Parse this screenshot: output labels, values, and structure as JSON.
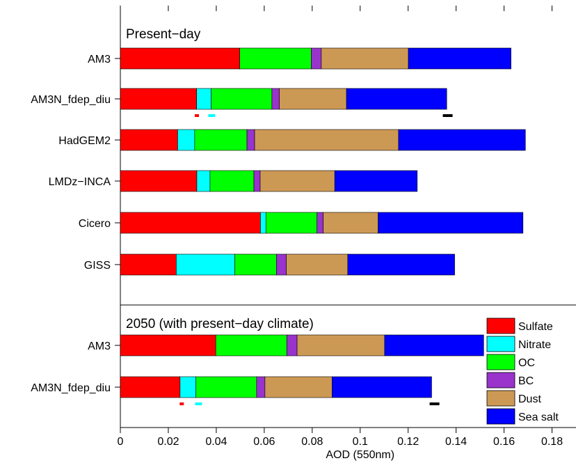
{
  "chart_data": {
    "type": "bar",
    "orientation": "horizontal",
    "stacked": true,
    "xlabel": "AOD (550nm)",
    "xlim": [
      0,
      0.19
    ],
    "xticks": [
      0,
      0.02,
      0.04,
      0.06,
      0.08,
      0.1,
      0.12,
      0.14,
      0.16,
      0.18
    ],
    "xtick_labels": [
      "0",
      "0.02",
      "0.04",
      "0.06",
      "0.08",
      "0.1",
      "0.12",
      "0.14",
      "0.16",
      "0.18"
    ],
    "grid": false,
    "legend_position": "bottom-right",
    "series": [
      {
        "name": "Sulfate",
        "color": "#ff0000"
      },
      {
        "name": "Nitrate",
        "color": "#00ffff"
      },
      {
        "name": "OC",
        "color": "#00ff00"
      },
      {
        "name": "BC",
        "color": "#9933cc"
      },
      {
        "name": "Dust",
        "color": "#cc9955"
      },
      {
        "name": "Sea salt",
        "color": "#0000ff"
      }
    ],
    "panels": [
      {
        "title": "Present−day",
        "rows": [
          {
            "label": "AM3",
            "values": [
              0.0498,
              0,
              0.0298,
              0.0042,
              0.0363,
              0.0428
            ]
          },
          {
            "label": "AM3N_fdep_diu",
            "values": [
              0.0318,
              0.0061,
              0.0253,
              0.0031,
              0.028,
              0.0418
            ],
            "markers": [
              {
                "x": 0.0319,
                "color": "#ff0000"
              },
              {
                "x": 0.0381,
                "color": "#00ffff"
              },
              {
                "x": 0.1365,
                "color": "#000000"
              }
            ]
          },
          {
            "label": "HadGEM2",
            "values": [
              0.0239,
              0.0071,
              0.0218,
              0.0032,
              0.06,
              0.0529
            ]
          },
          {
            "label": "LMDz−INCA",
            "values": [
              0.0319,
              0.0055,
              0.0183,
              0.0026,
              0.0311,
              0.0344
            ]
          },
          {
            "label": "Cicero",
            "values": [
              0.0584,
              0.0023,
              0.0213,
              0.0026,
              0.0229,
              0.0604
            ]
          },
          {
            "label": "GISS",
            "values": [
              0.0233,
              0.0244,
              0.0174,
              0.0041,
              0.0256,
              0.0446
            ]
          }
        ]
      },
      {
        "title": "2050 (with present−day climate)",
        "rows": [
          {
            "label": "AM3",
            "values": [
              0.0398,
              0,
              0.0296,
              0.0043,
              0.0365,
              0.0413
            ]
          },
          {
            "label": "AM3N_fdep_diu",
            "values": [
              0.0249,
              0.0066,
              0.0253,
              0.0035,
              0.028,
              0.0415
            ],
            "markers": [
              {
                "x": 0.0256,
                "color": "#ff0000"
              },
              {
                "x": 0.0326,
                "color": "#00ffff"
              },
              {
                "x": 0.131,
                "color": "#000000"
              }
            ]
          }
        ]
      }
    ]
  }
}
